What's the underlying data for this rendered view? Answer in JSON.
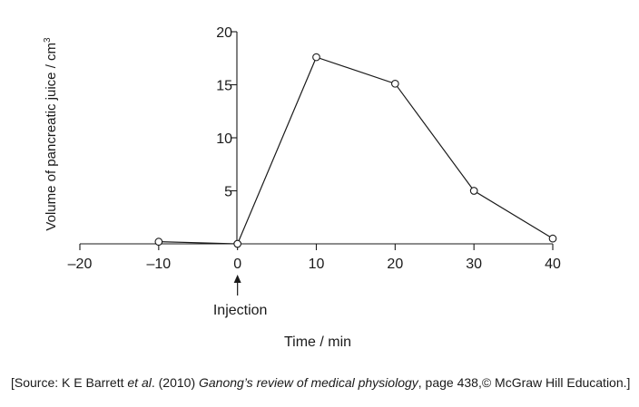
{
  "chart_data": {
    "type": "line",
    "title": "",
    "xlabel": "Time / min",
    "ylabel": "Volume of pancreatic juice / cm",
    "ylabel_superscript": "3",
    "xlim": [
      -20,
      40
    ],
    "ylim": [
      0,
      20
    ],
    "x_ticks": [
      -20,
      -10,
      0,
      10,
      20,
      30,
      40
    ],
    "x_tick_labels": [
      "–20",
      "–10",
      "0",
      "10",
      "20",
      "30",
      "40"
    ],
    "y_ticks": [
      5,
      10,
      15,
      20
    ],
    "y_tick_labels": [
      "5",
      "10",
      "15",
      "20"
    ],
    "grid": false,
    "legend": false,
    "series": [
      {
        "x": [
          -10,
          0,
          10,
          20,
          30,
          40
        ],
        "y": [
          0.2,
          0.0,
          17.6,
          15.1,
          5.0,
          0.5
        ],
        "marker": "open-circle",
        "color": "#1a1a1a"
      }
    ],
    "annotations": [
      {
        "text": "Injection",
        "x": 0,
        "arrow": "up"
      }
    ]
  },
  "source": {
    "part1": "[Source: K E Barrett ",
    "et_al": "et al",
    "part2": ". (2010) ",
    "book": "Ganong’s review of medical physiology",
    "part3": ", page 438,© McGraw Hill Education.]"
  }
}
